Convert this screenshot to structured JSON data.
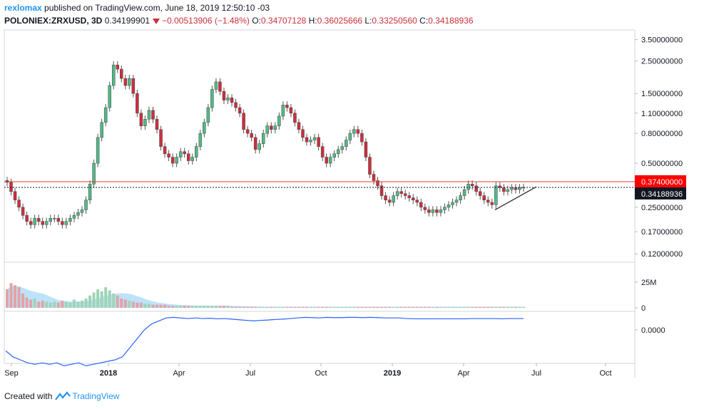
{
  "header": {
    "user": "rexlomax",
    "published_text": "published on TradingView.com, June 18, 2019 12:50:10 -03",
    "symbol": "POLONIEX:ZRXUSD, 3D",
    "last": "0.34199901",
    "change": "−0.00513906 (−1.48%)",
    "o_label": "O:",
    "o": "0.34707128",
    "h_label": "H:",
    "h": "0.36025666",
    "l_label": "L:",
    "l": "0.33250560",
    "c_label": "C:",
    "c": "0.34188936"
  },
  "footer": {
    "created_with": "Created with",
    "brand": "TradingView"
  },
  "colors": {
    "up": "#53b987",
    "down": "#cc2f3c",
    "accent": "#2196f3",
    "vol_ma": "#8fd0f5",
    "line": "#2962ff"
  },
  "chart_data": [
    {
      "type": "candlestick",
      "scale": "log",
      "y_ticks": [
        "3.50000000",
        "2.50000000",
        "1.50000000",
        "1.10000000",
        "0.80000000",
        "0.50000000",
        "0.25000000",
        "0.17000000",
        "0.12000000"
      ],
      "x_ticks": [
        "Sep",
        "2018",
        "Apr",
        "Jul",
        "Oct",
        "2019",
        "Apr",
        "Jul",
        "Oct"
      ],
      "horizontal_line": {
        "value": 0.374,
        "label": "0.37400000"
      },
      "last_price": {
        "value": 0.34188936,
        "label": "0.34188936"
      },
      "trendline": [
        [
          0.24,
          0.345
        ]
      ],
      "close_path": [
        0.37,
        0.32,
        0.28,
        0.25,
        0.22,
        0.2,
        0.19,
        0.21,
        0.2,
        0.19,
        0.2,
        0.21,
        0.21,
        0.2,
        0.19,
        0.2,
        0.21,
        0.22,
        0.23,
        0.24,
        0.28,
        0.36,
        0.5,
        0.75,
        0.95,
        1.2,
        1.7,
        2.35,
        2.2,
        1.9,
        1.7,
        1.9,
        1.5,
        1.1,
        0.9,
        1.0,
        1.15,
        1.0,
        0.85,
        0.65,
        0.58,
        0.55,
        0.5,
        0.55,
        0.6,
        0.58,
        0.52,
        0.55,
        0.65,
        0.8,
        0.95,
        1.2,
        1.6,
        1.8,
        1.55,
        1.35,
        1.4,
        1.3,
        1.2,
        1.1,
        0.85,
        0.8,
        0.75,
        0.62,
        0.68,
        0.8,
        0.9,
        0.85,
        0.9,
        1.05,
        1.25,
        1.2,
        1.1,
        0.95,
        0.85,
        0.75,
        0.7,
        0.72,
        0.75,
        0.65,
        0.55,
        0.5,
        0.55,
        0.58,
        0.62,
        0.65,
        0.72,
        0.8,
        0.85,
        0.8,
        0.7,
        0.55,
        0.42,
        0.38,
        0.35,
        0.3,
        0.28,
        0.27,
        0.3,
        0.32,
        0.31,
        0.3,
        0.29,
        0.28,
        0.27,
        0.25,
        0.24,
        0.23,
        0.24,
        0.23,
        0.24,
        0.25,
        0.26,
        0.27,
        0.28,
        0.3,
        0.33,
        0.36,
        0.35,
        0.32,
        0.3,
        0.28,
        0.27,
        0.26,
        0.35,
        0.34,
        0.32,
        0.33,
        0.34,
        0.33,
        0.34,
        0.342
      ]
    },
    {
      "type": "bar",
      "label": "Volume",
      "y_ticks": [
        "25M",
        "0"
      ],
      "values_m": [
        18,
        24,
        22,
        20,
        14,
        10,
        8,
        9,
        6,
        7,
        6,
        5,
        6,
        5,
        7,
        6,
        5,
        8,
        6,
        7,
        9,
        12,
        15,
        18,
        16,
        20,
        17,
        14,
        12,
        9,
        8,
        7,
        6,
        5,
        5,
        4,
        4,
        3,
        3,
        3,
        3,
        2,
        2,
        2,
        2,
        2,
        2,
        2,
        2,
        2,
        2,
        2,
        2,
        2,
        2,
        2,
        2,
        1,
        1,
        1,
        1,
        1,
        1,
        1,
        1,
        1,
        1,
        1,
        1,
        1,
        1,
        1,
        1,
        1,
        1,
        1,
        1,
        1,
        1,
        1,
        1,
        1,
        1,
        1,
        1,
        1,
        1,
        1,
        1,
        1,
        1,
        1,
        1,
        1,
        1,
        1,
        1,
        1,
        1,
        1,
        1,
        1,
        1,
        1,
        1,
        1,
        1,
        1,
        1,
        1,
        1,
        1,
        1,
        1,
        1,
        1,
        1,
        1,
        1,
        1,
        1,
        1,
        1,
        1,
        1,
        1,
        1,
        1,
        1,
        1,
        1,
        1
      ]
    },
    {
      "type": "line",
      "y_ticks": [
        "0.0000"
      ],
      "values": [
        -0.7,
        -0.9,
        -1.0,
        -1.1,
        -1.15,
        -1.1,
        -1.15,
        -1.1,
        -1.2,
        -1.15,
        -1.1,
        -1.2,
        -1.15,
        -1.1,
        -1.05,
        -1.0,
        -0.9,
        -0.6,
        -0.3,
        0.0,
        0.2,
        0.3,
        0.4,
        0.42,
        0.4,
        0.38,
        0.4,
        0.38,
        0.39,
        0.37,
        0.38,
        0.36,
        0.34,
        0.32,
        0.3,
        0.32,
        0.33,
        0.35,
        0.36,
        0.38,
        0.4,
        0.42,
        0.41,
        0.4,
        0.42,
        0.41,
        0.41,
        0.42,
        0.42,
        0.41,
        0.42,
        0.41,
        0.4,
        0.4,
        0.4,
        0.38,
        0.37,
        0.37,
        0.37,
        0.37,
        0.37,
        0.37,
        0.37,
        0.37,
        0.38,
        0.38,
        0.38,
        0.38,
        0.37,
        0.38,
        0.38,
        0.38
      ]
    }
  ]
}
